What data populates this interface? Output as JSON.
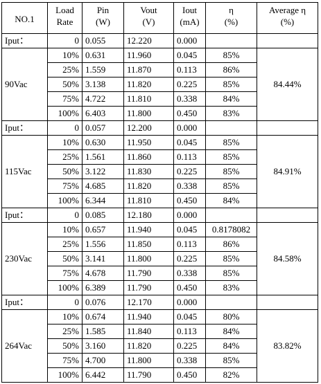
{
  "table": {
    "header": [
      [
        "NO.1"
      ],
      [
        "Load",
        "Rate"
      ],
      [
        "Pin",
        "(W)"
      ],
      [
        "Vout",
        "(V)"
      ],
      [
        "Iout",
        "(mA)"
      ],
      [
        "η",
        "(%)"
      ],
      [
        "Average η",
        "(%)"
      ]
    ],
    "groups": [
      {
        "input_label": "Iput：",
        "voltage": "90Vac",
        "average": "84.44%",
        "rows": [
          [
            "0",
            "0.055",
            "12.220",
            "0.000"
          ],
          [
            "10%",
            "0.631",
            "11.960",
            "0.045",
            "85%"
          ],
          [
            "25%",
            "1.559",
            "11.870",
            "0.113",
            "86%"
          ],
          [
            "50%",
            "3.138",
            "11.820",
            "0.225",
            "85%"
          ],
          [
            "75%",
            "4.722",
            "11.810",
            "0.338",
            "84%"
          ],
          [
            "100%",
            "6.403",
            "11.800",
            "0.450",
            "83%"
          ]
        ]
      },
      {
        "input_label": "Iput：",
        "voltage": "115Vac",
        "average": "84.91%",
        "rows": [
          [
            "0",
            "0.057",
            "12.200",
            "0.000"
          ],
          [
            "10%",
            "0.630",
            "11.950",
            "0.045",
            "85%"
          ],
          [
            "25%",
            "1.561",
            "11.860",
            "0.113",
            "85%"
          ],
          [
            "50%",
            "3.122",
            "11.830",
            "0.225",
            "85%"
          ],
          [
            "75%",
            "4.685",
            "11.820",
            "0.338",
            "85%"
          ],
          [
            "100%",
            "6.344",
            "11.810",
            "0.450",
            "84%"
          ]
        ]
      },
      {
        "input_label": "Iput：",
        "voltage": "230Vac",
        "average": "84.58%",
        "rows": [
          [
            "0",
            "0.085",
            "12.180",
            "0.000"
          ],
          [
            "10%",
            "0.657",
            "11.940",
            "0.045",
            "0.8178082"
          ],
          [
            "25%",
            "1.556",
            "11.850",
            "0.113",
            "86%"
          ],
          [
            "50%",
            "3.141",
            "11.800",
            "0.225",
            "85%"
          ],
          [
            "75%",
            "4.678",
            "11.790",
            "0.338",
            "85%"
          ],
          [
            "100%",
            "6.389",
            "11.790",
            "0.450",
            "83%"
          ]
        ]
      },
      {
        "input_label": "Iput：",
        "voltage": "264Vac",
        "average": "83.82%",
        "rows": [
          [
            "0",
            "0.076",
            "12.170",
            "0.000"
          ],
          [
            "10%",
            "0.674",
            "11.940",
            "0.045",
            "80%"
          ],
          [
            "25%",
            "1.585",
            "11.840",
            "0.113",
            "84%"
          ],
          [
            "50%",
            "3.160",
            "11.820",
            "0.225",
            "84%"
          ],
          [
            "75%",
            "4.700",
            "11.800",
            "0.338",
            "85%"
          ],
          [
            "100%",
            "6.442",
            "11.790",
            "0.450",
            "82%"
          ]
        ]
      }
    ]
  }
}
